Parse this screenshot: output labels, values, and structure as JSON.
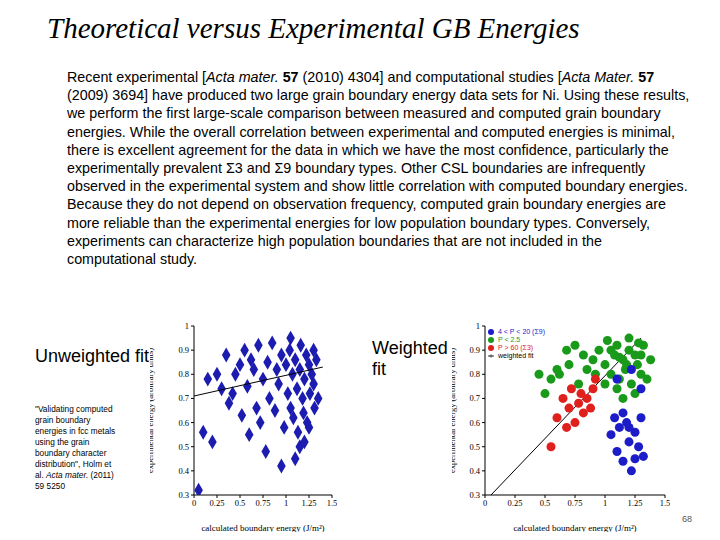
{
  "title": "Theoretical versus Experimental GB Energies",
  "body": [
    {
      "text": "Recent experimental ["
    },
    {
      "text": "Acta mater.",
      "style": "italic"
    },
    {
      "text": " "
    },
    {
      "text": "57",
      "style": "bold"
    },
    {
      "text": " (2010) 4304] and computational studies ["
    },
    {
      "text": "Acta Mater.",
      "style": "italic"
    },
    {
      "text": " "
    },
    {
      "text": "57",
      "style": "bold"
    },
    {
      "text": " (2009) 3694] have produced two large grain boundary energy data sets for Ni. Using these results, we perform the first large-scale comparison between measured and computed grain boundary energies. While the overall correlation between experimental and computed energies is minimal, there is excellent agreement for the data in which we have the most confidence, particularly the experimentally prevalent Σ3 and Σ9 boundary types. Other CSL boundaries are infrequently observed in the experimental system and show little correlation with computed boundary energies. Because they do not depend on observation frequency, computed grain boundary energies are more reliable than the experimental energies for low population boundary types. Conversely, experiments can characterize high population boundaries that are not included in the computational study."
    }
  ],
  "citation": [
    {
      "text": "\"Validating computed grain boundary energies in fcc metals using the grain boundary character distribution\", Holm et al. "
    },
    {
      "text": "Acta mater.",
      "style": "italic"
    },
    {
      "text": " (2011) 59 5250"
    }
  ],
  "page": "68",
  "chart_data": [
    {
      "type": "scatter",
      "title": "Unweighted fit",
      "x_label": "calculated boundary energy (J/m²)",
      "y_label": "experimental energy (arbitrary units)",
      "xlim": [
        0,
        1.5
      ],
      "xticks": [
        0,
        0.25,
        0.5,
        0.75,
        1,
        1.25,
        1.5
      ],
      "ylim": [
        0.3,
        1
      ],
      "yticks": [
        0.3,
        0.4,
        0.5,
        0.6,
        0.7,
        0.8,
        0.9,
        1
      ],
      "series": [
        {
          "type": "scatter",
          "color": "#1c1cb0",
          "marker": "diamond",
          "x": [
            0.05,
            0.1,
            0.15,
            0.2,
            0.25,
            0.3,
            0.35,
            0.38,
            0.42,
            0.45,
            0.5,
            0.52,
            0.55,
            0.58,
            0.6,
            0.62,
            0.65,
            0.68,
            0.7,
            0.72,
            0.75,
            0.78,
            0.8,
            0.82,
            0.85,
            0.88,
            0.9,
            0.92,
            0.95,
            0.98,
            1.0,
            1.02,
            1.04,
            1.05,
            1.07,
            1.08,
            1.1,
            1.12,
            1.13,
            1.15,
            1.16,
            1.18,
            1.19,
            1.2,
            1.22,
            1.23,
            1.25,
            1.26,
            1.28,
            1.3,
            1.31,
            1.33,
            1.35,
            1.1,
            1.15,
            1.2,
            1.25,
            1.05,
            1.3,
            0.95
          ],
          "values": [
            0.32,
            0.56,
            0.78,
            0.52,
            0.8,
            0.74,
            0.88,
            0.68,
            0.72,
            0.8,
            0.84,
            0.63,
            0.9,
            0.75,
            0.55,
            0.86,
            0.82,
            0.66,
            0.92,
            0.6,
            0.78,
            0.48,
            0.85,
            0.7,
            0.93,
            0.65,
            0.82,
            0.76,
            0.88,
            0.58,
            0.84,
            0.72,
            0.9,
            0.66,
            0.8,
            0.62,
            0.86,
            0.74,
            0.56,
            0.82,
            0.92,
            0.7,
            0.64,
            0.78,
            0.88,
            0.6,
            0.84,
            0.72,
            0.8,
            0.76,
            0.66,
            0.86,
            0.7,
            0.45,
            0.5,
            0.52,
            0.58,
            0.95,
            0.9,
            0.42
          ]
        },
        {
          "type": "line",
          "color": "#000000",
          "line_style": "solid",
          "x": [
            0,
            1.4
          ],
          "values": [
            0.71,
            0.83
          ]
        }
      ]
    },
    {
      "type": "scatter",
      "title": "Weighted fit",
      "x_label": "calculated boundary energy (J/m²)",
      "y_label": "experimental energy (arbitrary units)",
      "xlim": [
        0,
        1.5
      ],
      "xticks": [
        0,
        0.25,
        0.5,
        0.75,
        1,
        1.25,
        1.5
      ],
      "ylim": [
        0.3,
        1
      ],
      "yticks": [
        0.3,
        0.4,
        0.5,
        0.6,
        0.7,
        0.8,
        0.9,
        1
      ],
      "legend": "upper left",
      "series": [
        {
          "name": "weighted fit",
          "type": "line",
          "color": "#000000",
          "line_style": "solid",
          "x": [
            0.05,
            1.3
          ],
          "values": [
            0.3,
            0.95
          ]
        },
        {
          "name": "P < 2.5",
          "type": "scatter",
          "color": "#1a9a1a",
          "marker": "circle",
          "x": [
            0.45,
            0.5,
            0.55,
            0.6,
            0.62,
            0.68,
            0.7,
            0.75,
            0.78,
            0.82,
            0.85,
            0.9,
            0.95,
            1.0,
            1.02,
            1.05,
            1.08,
            1.1,
            1.12,
            1.15,
            1.17,
            1.2,
            1.22,
            1.25,
            1.27,
            1.3,
            1.32,
            1.35,
            1.38,
            1.1,
            1.15,
            1.2,
            1.25,
            1.05,
            1.3,
            1.0,
            0.92,
            1.18,
            1.28,
            1.12
          ],
          "values": [
            0.8,
            0.72,
            0.78,
            0.82,
            0.8,
            0.9,
            0.84,
            0.92,
            0.76,
            0.88,
            0.82,
            0.86,
            0.9,
            0.84,
            0.94,
            0.8,
            0.88,
            0.92,
            0.78,
            0.86,
            0.82,
            0.9,
            0.76,
            0.88,
            0.84,
            0.8,
            0.92,
            0.78,
            0.86,
            0.74,
            0.7,
            0.95,
            0.72,
            0.9,
            0.88,
            0.76,
            0.8,
            0.84,
            0.93,
            0.87
          ]
        },
        {
          "name": "4 < P < 20 (Σ9)",
          "type": "scatter",
          "color": "#1c1cc8",
          "marker": "circle",
          "x": [
            1.05,
            1.08,
            1.1,
            1.12,
            1.15,
            1.18,
            1.2,
            1.22,
            1.25,
            1.28,
            1.3,
            1.32,
            1.15,
            1.2,
            1.25,
            1.1,
            1.3,
            1.22
          ],
          "values": [
            0.55,
            0.62,
            0.48,
            0.58,
            0.44,
            0.6,
            0.52,
            0.4,
            0.56,
            0.5,
            0.62,
            0.46,
            0.64,
            0.58,
            0.45,
            0.78,
            0.74,
            0.82
          ]
        },
        {
          "name": "P > 60 (Σ3)",
          "type": "scatter",
          "color": "#e0201c",
          "marker": "circle",
          "x": [
            0.6,
            0.65,
            0.7,
            0.72,
            0.75,
            0.78,
            0.8,
            0.82,
            0.85,
            0.88,
            0.9,
            0.55,
            0.68,
            0.92
          ],
          "values": [
            0.62,
            0.7,
            0.66,
            0.74,
            0.6,
            0.68,
            0.72,
            0.64,
            0.7,
            0.66,
            0.74,
            0.5,
            0.58,
            0.78
          ]
        }
      ]
    }
  ]
}
